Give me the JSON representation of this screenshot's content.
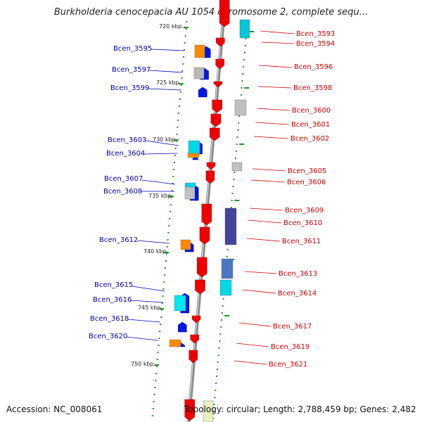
{
  "title": "Burkholderia cenocepacia AU 1054 chromosome 2, complete sequ...",
  "accession": "Accession: NC_008061",
  "topology": "Topology: circular; Length: 2,788,459 bp; Genes: 2,482",
  "kbp_labels": [
    "720 kbp",
    "725 kbp",
    "730 kbp",
    "735 kbp",
    "740 kbp",
    "745 kbp",
    "750 kbp"
  ],
  "colors": {
    "forward": "#0000dd",
    "reverse": "#dd0000",
    "backbone": "#999999",
    "tick": "#228822"
  },
  "genes_left": [
    "Bcen_3595",
    "Bcen_3597",
    "Bcen_3599",
    "Bcen_3603",
    "Bcen_3604",
    "Bcen_3607",
    "Bcen_3608",
    "Bcen_3612",
    "Bcen_3615",
    "Bcen_3616",
    "Bcen_3618",
    "Bcen_3620"
  ],
  "genes_right": [
    "Bcen_3593",
    "Bcen_3594",
    "Bcen_3596",
    "Bcen_3598",
    "Bcen_3600",
    "Bcen_3601",
    "Bcen_3602",
    "Bcen_3605",
    "Bcen_3606",
    "Bcen_3609",
    "Bcen_3610",
    "Bcen_3611",
    "Bcen_3613",
    "Bcen_3614",
    "Bcen_3617",
    "Bcen_3619",
    "Bcen_3621"
  ]
}
